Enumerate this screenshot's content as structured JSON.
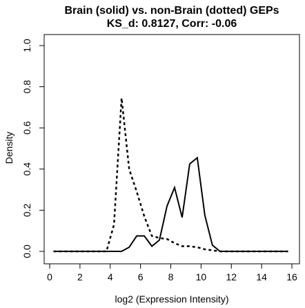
{
  "chart_data": {
    "type": "line",
    "title": "Brain (solid) vs. non-Brain (dotted) GEPs",
    "subtitle": "KS_d: 0.8127, Corr: -0.06",
    "xlabel": "log2 (Expression Intensity)",
    "ylabel": "Density",
    "xlim": [
      0,
      16
    ],
    "ylim": [
      0,
      1.0
    ],
    "x_ticks": [
      "0",
      "2",
      "4",
      "6",
      "8",
      "10",
      "12",
      "14",
      "16"
    ],
    "y_ticks": [
      "0.0",
      "0.2",
      "0.4",
      "0.6",
      "0.8",
      "1.0"
    ],
    "grid": false,
    "legend": "none",
    "series": [
      {
        "style": "solid",
        "color": "#000000",
        "x": [
          0.25,
          0.75,
          1.25,
          1.75,
          2.25,
          2.75,
          3.25,
          3.75,
          4.25,
          4.75,
          5.25,
          5.75,
          6.25,
          6.75,
          7.25,
          7.75,
          8.25,
          8.75,
          9.25,
          9.75,
          10.25,
          10.75,
          11.25,
          11.75,
          12.25,
          12.75,
          13.25,
          13.75,
          14.25,
          14.75,
          15.25,
          15.75
        ],
        "values": [
          0,
          0,
          0,
          0,
          0,
          0,
          0,
          0,
          0,
          0,
          0.02,
          0.075,
          0.075,
          0.025,
          0.055,
          0.22,
          0.31,
          0.165,
          0.425,
          0.455,
          0.175,
          0.03,
          0,
          0,
          0,
          0,
          0,
          0,
          0,
          0,
          0,
          0
        ]
      },
      {
        "style": "dotted",
        "color": "#000000",
        "x": [
          0.25,
          0.75,
          1.25,
          1.75,
          2.25,
          2.75,
          3.25,
          3.75,
          4.25,
          4.75,
          5.25,
          5.75,
          6.25,
          6.75,
          7.25,
          7.75,
          8.25,
          8.75,
          9.25,
          9.75,
          10.25,
          10.75,
          11.25,
          11.75,
          12.25,
          12.75,
          13.25,
          13.75,
          14.25,
          14.75,
          15.25,
          15.75
        ],
        "values": [
          0,
          0,
          0,
          0,
          0,
          0,
          0,
          0,
          0.13,
          0.745,
          0.4,
          0.29,
          0.17,
          0.075,
          0.065,
          0.06,
          0.04,
          0.025,
          0.025,
          0.02,
          0.01,
          0.005,
          0,
          0,
          0,
          0,
          0,
          0,
          0,
          0,
          0,
          0
        ]
      }
    ]
  }
}
